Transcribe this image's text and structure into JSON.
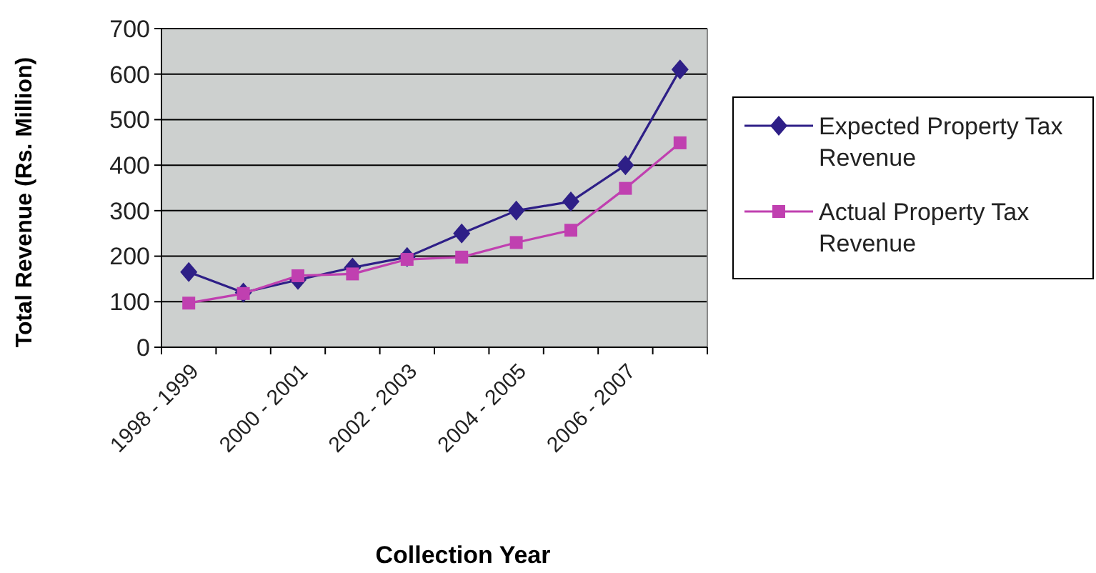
{
  "chart_data": {
    "type": "line",
    "xlabel": "Collection Year",
    "ylabel": "Total Revenue (Rs. Million)",
    "categories": [
      "1998 - 1999",
      null,
      "2000 - 2001",
      null,
      "2002 - 2003",
      null,
      "2004 - 2005",
      null,
      "2006 - 2007",
      null
    ],
    "series": [
      {
        "name": "Expected Property Tax Revenue",
        "color": "#2e1f87",
        "marker": "diamond",
        "values": [
          165,
          120,
          148,
          175,
          198,
          250,
          300,
          320,
          400,
          610
        ]
      },
      {
        "name": "Actual Property Tax Revenue",
        "color": "#c040b0",
        "marker": "square",
        "values": [
          97,
          118,
          157,
          161,
          193,
          198,
          230,
          257,
          349,
          449
        ]
      }
    ],
    "ylim": [
      0,
      700
    ],
    "yticks": [
      0,
      100,
      200,
      300,
      400,
      500,
      600,
      700
    ],
    "grid": "y",
    "legend": "right"
  }
}
